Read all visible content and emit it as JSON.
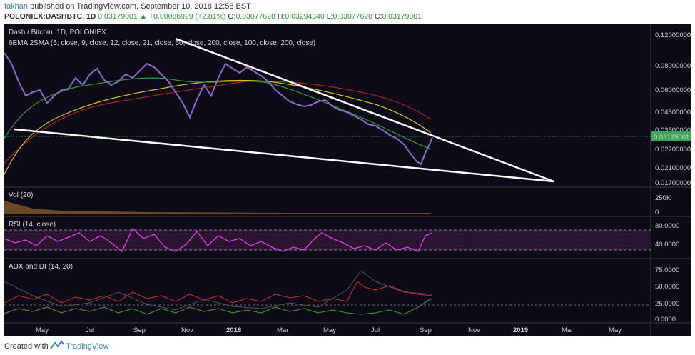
{
  "header": {
    "author": "fakhan",
    "published_text": "published on TradingView.com, September 10, 2018 12:58 BST",
    "symbol": "POLONIEX:DASHBTC, 1D",
    "last": "0.03179001",
    "change": "+0.00086929 (+2.81%)",
    "o_label": "O:",
    "o_value": "0.03077628",
    "h_label": "H:",
    "h_value": "0.03294340",
    "l_label": "L:",
    "l_value": "0.03077628",
    "c_label": "C:",
    "c_value": "0.03179001"
  },
  "chart": {
    "title": "Dash / Bitcoin, 1D, POLONIEX",
    "indicator_main": "6EMA 2SMA (5, close, 9, close, 12, close, 21, close, 50, close, 200, close, 100, close, 200, close)",
    "price_ticks": [
      "0.12000000",
      "0.08000000",
      "0.06000000",
      "0.04500000",
      "0.03500000",
      "0.02700000",
      "0.02100000",
      "0.01700000"
    ],
    "price_tag": "0.03179001",
    "vol_label": "Vol (20)",
    "vol_ticks": [
      "250K",
      "0"
    ],
    "rsi_label": "RSI (14, close)",
    "rsi_ticks": [
      "80.0000",
      "40.0000"
    ],
    "adx_label": "ADX and DI (14, 20)",
    "adx_ticks": [
      "75.0000",
      "50.0000",
      "25.0000",
      "0.0000"
    ],
    "time_labels": [
      "May",
      "Jul",
      "Sep",
      "Nov",
      "2018",
      "Mar",
      "May",
      "Jul",
      "Sep",
      "Nov",
      "2019",
      "Mar",
      "May"
    ],
    "colors": {
      "background": "#0d0b17",
      "price_tag": "#3aa757",
      "rsi": "#e040e8",
      "adx_red": "#c0312b",
      "adx_green": "#3c9a2c",
      "trendline": "#ffffff"
    }
  },
  "footer": {
    "created_with": "Created with",
    "brand": "TradingView"
  }
}
